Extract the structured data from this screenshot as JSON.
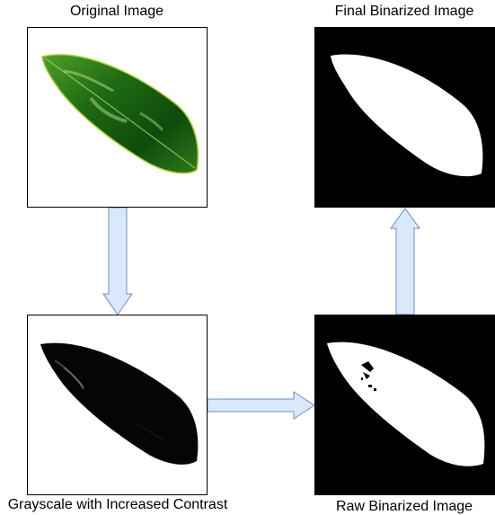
{
  "panels": {
    "original": {
      "title": "Original Image"
    },
    "final": {
      "title": "Final Binarized Image"
    },
    "grayscale": {
      "title": "Grayscale with Increased Contrast"
    },
    "raw": {
      "title": "Raw Binarized Image"
    }
  },
  "colors": {
    "arrow_fill": "#dae8fc",
    "arrow_stroke": "#6c8ebf",
    "leaf_green_dark": "#0f4a12",
    "leaf_green": "#2d8a1f",
    "leaf_highlight": "#9fd46a",
    "black": "#000000",
    "white": "#ffffff"
  },
  "icons": {
    "arrow_down": "arrow-down",
    "arrow_right": "arrow-right",
    "arrow_up": "arrow-up"
  }
}
